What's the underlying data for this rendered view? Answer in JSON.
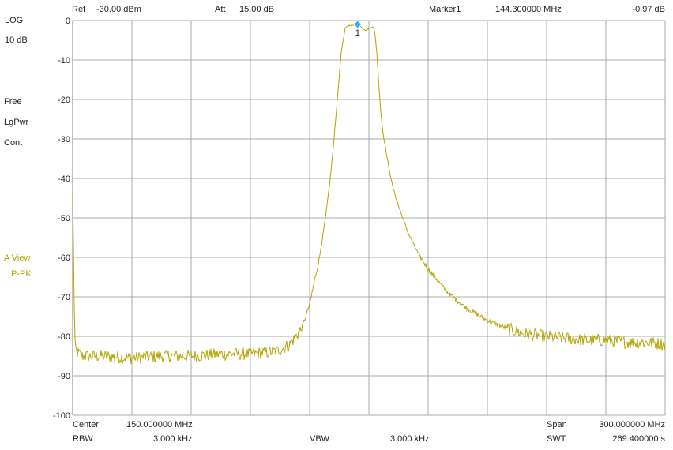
{
  "header": {
    "ref_label": "Ref",
    "ref_value": "-30.00 dBm",
    "att_label": "Att",
    "att_value": "15.00 dB",
    "marker_label": "Marker1",
    "marker_freq": "144.300000 MHz",
    "marker_level": "-0.97 dB"
  },
  "side_panel": {
    "scale_mode": "LOG",
    "scale_div": "10 dB",
    "trigger": "Free",
    "detector_mode": "LgPwr",
    "sweep_mode": "Cont",
    "view_mode": "A View",
    "detector": "P-PK"
  },
  "footer": {
    "center_label": "Center",
    "center_value": "150.000000 MHz",
    "span_label": "Span",
    "span_value": "300.000000 MHz",
    "rbw_label": "RBW",
    "rbw_value": "3.000 kHz",
    "vbw_label": "VBW",
    "vbw_value": "3.000 kHz",
    "swt_label": "SWT",
    "swt_value": "269.400000 s"
  },
  "colors": {
    "trace": "#b3a400",
    "grid": "#a8a8a8",
    "marker": "#3fa9f5"
  },
  "chart_data": {
    "type": "line",
    "y_tick_labels": [
      "0",
      "-10",
      "-20",
      "-30",
      "-40",
      "-50",
      "-60",
      "-70",
      "-80",
      "-90",
      "-100"
    ],
    "ylim": [
      -100,
      0
    ],
    "xlim": [
      0,
      300
    ],
    "x_unit": "MHz",
    "y_unit": "dB",
    "grid": true,
    "x_divisions": 10,
    "y_divisions": 10,
    "series": [
      {
        "x": [
          0,
          0.5,
          1,
          2,
          5,
          15,
          30,
          45,
          60,
          75,
          90,
          100,
          105,
          110,
          113,
          116,
          118,
          120,
          122,
          125,
          128,
          130,
          132,
          134,
          136,
          138,
          139,
          140,
          141,
          142,
          143,
          144.3,
          146,
          148,
          150,
          152,
          153,
          154,
          155,
          156,
          157,
          158,
          160,
          162,
          165,
          170,
          175,
          180,
          190,
          200,
          210,
          220,
          230,
          240,
          250,
          260,
          270,
          280,
          290,
          300
        ],
        "values": [
          -44,
          -60,
          -82,
          -84,
          -85,
          -85,
          -85.5,
          -85,
          -85,
          -84.5,
          -84.5,
          -84,
          -83.5,
          -82,
          -80,
          -78,
          -75,
          -72,
          -67,
          -60,
          -50,
          -42,
          -32,
          -20,
          -8,
          -2,
          -1.5,
          -1.2,
          -1.2,
          -1.3,
          -1,
          -0.97,
          -1.5,
          -2.5,
          -2,
          -1.5,
          -3,
          -8,
          -16,
          -23,
          -28,
          -31,
          -37,
          -42,
          -47,
          -54,
          -59,
          -63,
          -69,
          -73,
          -76,
          -78,
          -79.5,
          -80,
          -80.5,
          -81,
          -81,
          -81.5,
          -81.5,
          -82
        ]
      }
    ],
    "marker": {
      "label": "1",
      "x": 144.3,
      "y": -0.97
    }
  }
}
